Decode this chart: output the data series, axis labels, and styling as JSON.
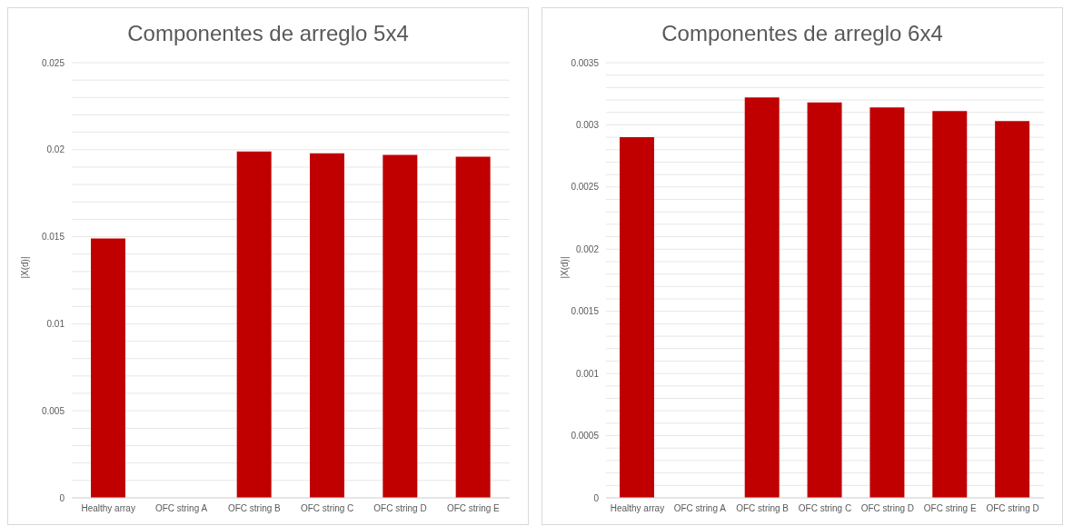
{
  "chart_data": [
    {
      "type": "bar",
      "title": "Componentes de arreglo 5x4",
      "ylabel": "|X(d)|",
      "categories": [
        "Healthy array",
        "OFC string A",
        "OFC string B",
        "OFC string C",
        "OFC string D",
        "OFC string E"
      ],
      "values": [
        0.0149,
        0,
        0.0199,
        0.0198,
        0.0197,
        0.0196
      ],
      "color": "#c00000",
      "ylim": [
        0,
        0.025
      ],
      "yticks": [
        0,
        {
          "value": 0.001,
          "label": null
        },
        {
          "value": 0.002,
          "label": null
        },
        {
          "value": 0.003,
          "label": null
        },
        {
          "value": 0.004,
          "label": null
        },
        0.005,
        {
          "value": 0.006,
          "label": null
        },
        {
          "value": 0.007,
          "label": null
        },
        {
          "value": 0.008,
          "label": null
        },
        {
          "value": 0.009,
          "label": null
        },
        0.01,
        {
          "value": 0.011,
          "label": null
        },
        {
          "value": 0.012,
          "label": null
        },
        {
          "value": 0.013,
          "label": null
        },
        {
          "value": 0.014,
          "label": null
        },
        0.015,
        {
          "value": 0.016,
          "label": null
        },
        {
          "value": 0.017,
          "label": null
        },
        {
          "value": 0.018,
          "label": null
        },
        {
          "value": 0.019,
          "label": null
        },
        0.02,
        {
          "value": 0.021,
          "label": null
        },
        {
          "value": 0.022,
          "label": null
        },
        {
          "value": 0.023,
          "label": null
        },
        {
          "value": 0.024,
          "label": null
        },
        0.025
      ],
      "grid": "y",
      "legend": false
    },
    {
      "type": "bar",
      "title": "Componentes de arreglo 6x4",
      "ylabel": "|X(d)|",
      "categories": [
        "Healthy array",
        "OFC string A",
        "OFC string B",
        "OFC string C",
        "OFC string D",
        "OFC string E",
        "OFC string D"
      ],
      "values": [
        0.0029,
        0,
        0.00322,
        0.00318,
        0.00314,
        0.00311,
        0.00303
      ],
      "color": "#c00000",
      "ylim": [
        0,
        0.0035
      ],
      "yticks": [
        0,
        {
          "value": 0.0001,
          "label": null
        },
        {
          "value": 0.0002,
          "label": null
        },
        {
          "value": 0.0003,
          "label": null
        },
        {
          "value": 0.0004,
          "label": null
        },
        0.0005,
        {
          "value": 0.0006,
          "label": null
        },
        {
          "value": 0.0007,
          "label": null
        },
        {
          "value": 0.0008,
          "label": null
        },
        {
          "value": 0.0009,
          "label": null
        },
        0.001,
        {
          "value": 0.0011,
          "label": null
        },
        {
          "value": 0.0012,
          "label": null
        },
        {
          "value": 0.0013,
          "label": null
        },
        {
          "value": 0.0014,
          "label": null
        },
        0.0015,
        {
          "value": 0.0016,
          "label": null
        },
        {
          "value": 0.0017,
          "label": null
        },
        {
          "value": 0.0018,
          "label": null
        },
        {
          "value": 0.0019,
          "label": null
        },
        0.002,
        {
          "value": 0.0021,
          "label": null
        },
        {
          "value": 0.0022,
          "label": null
        },
        {
          "value": 0.0023,
          "label": null
        },
        {
          "value": 0.0024,
          "label": null
        },
        0.0025,
        {
          "value": 0.0026,
          "label": null
        },
        {
          "value": 0.0027,
          "label": null
        },
        {
          "value": 0.0028,
          "label": null
        },
        {
          "value": 0.0029,
          "label": null
        },
        0.003,
        {
          "value": 0.0031,
          "label": null
        },
        {
          "value": 0.0032,
          "label": null
        },
        {
          "value": 0.0033,
          "label": null
        },
        {
          "value": 0.0034,
          "label": null
        },
        0.0035
      ],
      "grid": "y",
      "legend": false
    }
  ]
}
